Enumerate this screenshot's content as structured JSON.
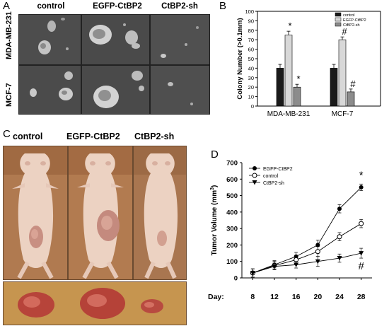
{
  "panel_a": {
    "letter": "A",
    "column_headers": [
      "control",
      "EGFP-CtBP2",
      "CtBP2-sh"
    ],
    "row_labels": [
      "MDA-MB-231",
      "MCF-7"
    ]
  },
  "panel_b": {
    "letter": "B",
    "chart_data": {
      "type": "bar",
      "categories": [
        "MDA-MB-231",
        "MCF-7"
      ],
      "series": [
        {
          "name": "control",
          "values": [
            40,
            40
          ],
          "errors": [
            4,
            4
          ],
          "color": "#1a1a1a"
        },
        {
          "name": "EGFP-CtBP2",
          "values": [
            75,
            70
          ],
          "errors": [
            4,
            3
          ],
          "color": "#d8d8d8"
        },
        {
          "name": "CtBP2-sh",
          "values": [
            20,
            15
          ],
          "errors": [
            3,
            3
          ],
          "color": "#8c8c8c"
        }
      ],
      "annotations": [
        {
          "category": "MDA-MB-231",
          "series": "EGFP-CtBP2",
          "mark": "*"
        },
        {
          "category": "MDA-MB-231",
          "series": "CtBP2-sh",
          "mark": "*"
        },
        {
          "category": "MCF-7",
          "series": "EGFP-CtBP2",
          "mark": "#"
        },
        {
          "category": "MCF-7",
          "series": "CtBP2-sh",
          "mark": "#"
        }
      ],
      "ylabel": "Colony Number (>0.1mm)",
      "ylim": [
        0,
        100
      ],
      "yticks": [
        0,
        10,
        20,
        30,
        40,
        50,
        60,
        70,
        80,
        90,
        100
      ],
      "legend_position": "top-right",
      "grid": false
    }
  },
  "panel_c": {
    "letter": "C",
    "column_headers": [
      "control",
      "EGFP-CtBP2",
      "CtBP2-sh"
    ]
  },
  "panel_d": {
    "letter": "D",
    "chart_data": {
      "type": "line",
      "x": [
        8,
        12,
        16,
        20,
        24,
        28
      ],
      "xlabel_prefix": "Day:",
      "series": [
        {
          "name": "EGFP-CtBP2",
          "values": [
            30,
            80,
            130,
            200,
            420,
            550
          ],
          "errors": [
            25,
            25,
            25,
            30,
            25,
            20
          ],
          "marker": "filled-circle"
        },
        {
          "name": "control",
          "values": [
            30,
            75,
            110,
            160,
            250,
            330
          ],
          "errors": [
            25,
            25,
            25,
            30,
            25,
            25
          ],
          "marker": "open-circle"
        },
        {
          "name": "CtBP2-sh",
          "values": [
            30,
            70,
            80,
            100,
            120,
            150
          ],
          "errors": [
            25,
            20,
            20,
            30,
            25,
            30
          ],
          "marker": "filled-triangle-down"
        }
      ],
      "annotations": [
        {
          "series": "EGFP-CtBP2",
          "x": 28,
          "mark": "*"
        },
        {
          "series": "CtBP2-sh",
          "x": 28,
          "mark": "#"
        }
      ],
      "ylabel": "Tumor Volume (mm",
      "ylabel_sup": "3",
      "ylabel_suffix": ")",
      "ylim": [
        0,
        700
      ],
      "yticks": [
        0,
        100,
        200,
        300,
        400,
        500,
        600,
        700
      ],
      "legend_position": "top-left",
      "grid": false
    }
  }
}
